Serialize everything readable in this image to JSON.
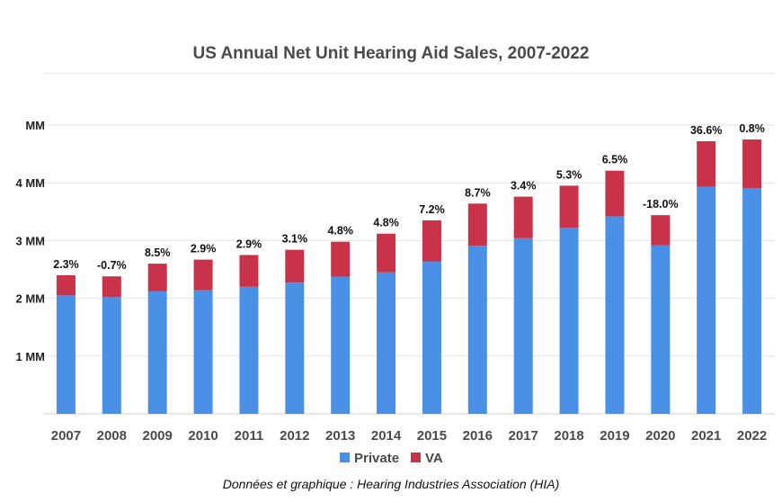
{
  "chart_data": {
    "type": "bar",
    "stacked": true,
    "title": "US Annual Net Unit Hearing Aid Sales, 2007-2022",
    "categories": [
      "2007",
      "2008",
      "2009",
      "2010",
      "2011",
      "2012",
      "2013",
      "2014",
      "2015",
      "2016",
      "2017",
      "2018",
      "2019",
      "2020",
      "2021",
      "2022"
    ],
    "series": [
      {
        "name": "Private",
        "color": "#4a90e6",
        "values": [
          2.05,
          2.02,
          2.12,
          2.14,
          2.2,
          2.27,
          2.37,
          2.45,
          2.64,
          2.91,
          3.04,
          3.22,
          3.42,
          2.92,
          3.93,
          3.91
        ]
      },
      {
        "name": "VA",
        "color": "#c8334a",
        "values": [
          0.35,
          0.36,
          0.48,
          0.53,
          0.55,
          0.57,
          0.61,
          0.67,
          0.71,
          0.73,
          0.72,
          0.73,
          0.79,
          0.52,
          0.79,
          0.84
        ]
      }
    ],
    "data_labels": [
      "2.3%",
      "-0.7%",
      "8.5%",
      "2.9%",
      "2.9%",
      "3.1%",
      "4.8%",
      "4.8%",
      "7.2%",
      "8.7%",
      "3.4%",
      "5.3%",
      "6.5%",
      "-18.0%",
      "36.6%",
      "0.8%"
    ],
    "yticks": [
      {
        "value": 1,
        "label": "1 MM"
      },
      {
        "value": 2,
        "label": "2 MM"
      },
      {
        "value": 3,
        "label": "3 MM"
      },
      {
        "value": 4,
        "label": "4 MM"
      },
      {
        "value": 5,
        "label": "MM"
      }
    ],
    "ylim": [
      0,
      6
    ],
    "grid": true,
    "legend": "bottom"
  },
  "source_note": "Données et graphique : Hearing Industries Association (HIA)"
}
